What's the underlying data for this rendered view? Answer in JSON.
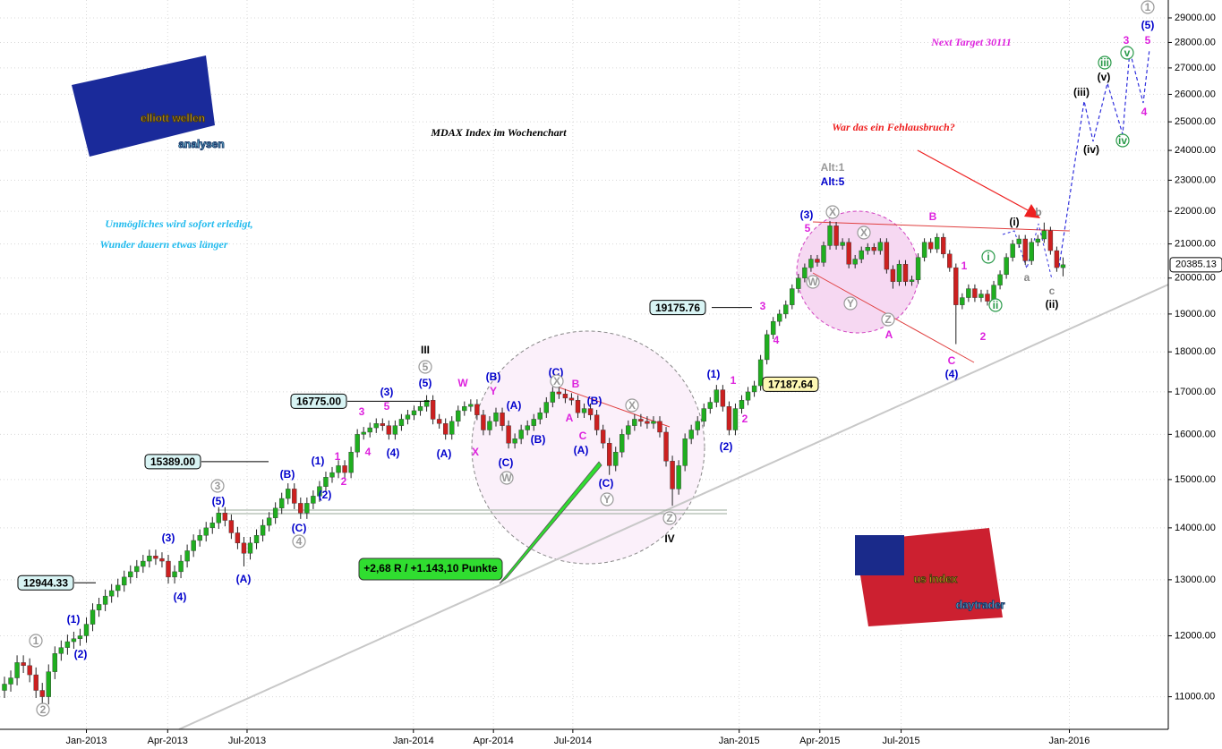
{
  "chart_data": {
    "type": "candlestick",
    "title": "MDAX Index im Wochenchart",
    "subtitle": [
      "Unmögliches wird sofort erledigt,",
      "Wunder dauern etwas länger"
    ],
    "question": "War das ein Fehlausbruch?",
    "target": "Next Target 30111",
    "logos": [
      "elliott wellen",
      "analysen",
      "us index",
      "daytrader"
    ],
    "up_color": "#1fae1f",
    "down_color": "#cc2020",
    "log_scale": true,
    "grid": true,
    "xlim": [
      -0.71,
      184.7
    ],
    "ylim": [
      10500,
      29750
    ],
    "xticks": [
      {
        "value": 13,
        "label": "Jan-2013"
      },
      {
        "value": 25.9,
        "label": "Apr-2013"
      },
      {
        "value": 38.5,
        "label": "Jul-2013"
      },
      {
        "value": 64.9,
        "label": "Jan-2014"
      },
      {
        "value": 77.6,
        "label": "Apr-2014"
      },
      {
        "value": 90.2,
        "label": "Jul-2014"
      },
      {
        "value": 116.6,
        "label": "Jan-2015"
      },
      {
        "value": 129.4,
        "label": "Apr-2015"
      },
      {
        "value": 142.3,
        "label": "Jul-2015"
      },
      {
        "value": 169,
        "label": "Jan-2016"
      }
    ],
    "yticks": [
      {
        "value": 11000,
        "label": "11000.00"
      },
      {
        "value": 12000,
        "label": "12000.00"
      },
      {
        "value": 13000,
        "label": "13000.00"
      },
      {
        "value": 14000,
        "label": "14000.00"
      },
      {
        "value": 15000,
        "label": "15000.00"
      },
      {
        "value": 16000,
        "label": "16000.00"
      },
      {
        "value": 17000,
        "label": "17000.00"
      },
      {
        "value": 18000,
        "label": "18000.00"
      },
      {
        "value": 19000,
        "label": "19000.00"
      },
      {
        "value": 20000,
        "label": "20000.00"
      },
      {
        "value": 21000,
        "label": "21000.00"
      },
      {
        "value": 22000,
        "label": "22000.00"
      },
      {
        "value": 23000,
        "label": "23000.00"
      },
      {
        "value": 24000,
        "label": "24000.00"
      },
      {
        "value": 25000,
        "label": "25000.00"
      },
      {
        "value": 26000,
        "label": "26000.00"
      },
      {
        "value": 27000,
        "label": "27000.00"
      },
      {
        "value": 28000,
        "label": "28000.00"
      },
      {
        "value": 29000,
        "label": "29000.00"
      }
    ],
    "open": [
      11100,
      11200,
      11300,
      11550,
      11500,
      11350,
      11100,
      11000,
      11400,
      11700,
      11800,
      11900,
      11950,
      12000,
      12200,
      12450,
      12550,
      12700,
      12800,
      12900,
      13050,
      13150,
      13250,
      13350,
      13450,
      13400,
      13350,
      13050,
      13150,
      13350,
      13550,
      13750,
      13850,
      14000,
      14100,
      14300,
      14150,
      13900,
      13700,
      13500,
      13700,
      13850,
      14050,
      14200,
      14400,
      14600,
      14800,
      14500,
      14300,
      14500,
      14650,
      14850,
      15050,
      15150,
      15300,
      15150,
      15600,
      16000,
      16050,
      16150,
      16250,
      16200,
      16000,
      16200,
      16350,
      16450,
      16550,
      16650,
      16800,
      16350,
      16250,
      16000,
      16300,
      16550,
      16650,
      16700,
      16450,
      16100,
      16300,
      16500,
      16200,
      15800,
      15900,
      16100,
      16200,
      16350,
      16500,
      16750,
      17000,
      16950,
      16850,
      16800,
      16500,
      16600,
      16450,
      16100,
      15800,
      15300,
      15600,
      16000,
      16200,
      16350,
      16300,
      16250,
      16300,
      16050,
      15400,
      14800,
      15300,
      15900,
      16100,
      16300,
      16600,
      16750,
      17050,
      16650,
      16100,
      16600,
      16800,
      17000,
      17150,
      17800,
      18450,
      18800,
      19000,
      19250,
      19700,
      20000,
      20300,
      20550,
      20450,
      20950,
      21550,
      20950,
      21050,
      20400,
      20550,
      20800,
      20900,
      20800,
      21050,
      20250,
      19900,
      20400,
      19900,
      19950,
      20600,
      21050,
      20850,
      21200,
      20700,
      20300,
      19250,
      19450,
      19700,
      19450,
      19550,
      19350,
      19800,
      20100,
      20600,
      21000,
      21150,
      20500,
      21050,
      21150,
      21400,
      20800,
      20300
    ],
    "high": [
      11320,
      11420,
      11670,
      11670,
      11620,
      11470,
      11220,
      11520,
      11820,
      11920,
      12020,
      12070,
      12120,
      12320,
      12570,
      12670,
      12820,
      12920,
      13020,
      13170,
      13270,
      13370,
      13470,
      13570,
      13570,
      13520,
      13470,
      13270,
      13470,
      13670,
      13870,
      13970,
      14120,
      14220,
      14420,
      14420,
      14270,
      14020,
      13820,
      13820,
      13970,
      14170,
      14320,
      14520,
      14720,
      14920,
      14920,
      14620,
      14620,
      14770,
      14970,
      15170,
      15270,
      15420,
      15420,
      15720,
      16120,
      16170,
      16270,
      16370,
      16370,
      16320,
      16320,
      16470,
      16570,
      16670,
      16770,
      16920,
      16920,
      16470,
      16370,
      16420,
      16670,
      16770,
      16820,
      16820,
      16570,
      16420,
      16620,
      16620,
      16320,
      16020,
      16220,
      16320,
      16470,
      16620,
      16870,
      17120,
      17120,
      17070,
      16970,
      16920,
      16720,
      16720,
      16570,
      16220,
      15920,
      15720,
      16120,
      16320,
      16470,
      16470,
      16420,
      16420,
      16420,
      16170,
      15520,
      15420,
      16020,
      16220,
      16420,
      16720,
      16870,
      17170,
      17170,
      16770,
      16720,
      16920,
      17120,
      17270,
      17920,
      18570,
      18920,
      19120,
      19370,
      19820,
      20120,
      20420,
      20670,
      20670,
      21070,
      21700,
      21670,
      21170,
      21170,
      20670,
      20920,
      21020,
      21020,
      21170,
      21170,
      20370,
      20520,
      20520,
      20070,
      20720,
      21170,
      21170,
      21320,
      21320,
      20820,
      20420,
      19570,
      19820,
      19820,
      19670,
      19670,
      19920,
      20220,
      20720,
      21120,
      21270,
      21270,
      21170,
      21270,
      21650,
      21520,
      20920,
      20600
    ],
    "low": [
      10980,
      11080,
      11180,
      11380,
      11230,
      10980,
      10880,
      10880,
      11280,
      11580,
      11680,
      11780,
      11830,
      11880,
      12080,
      12330,
      12430,
      12580,
      12680,
      12780,
      12930,
      13030,
      13130,
      13230,
      13280,
      13230,
      12930,
      12930,
      13030,
      13230,
      13430,
      13630,
      13730,
      13880,
      13980,
      14030,
      13780,
      13580,
      13250,
      13380,
      13580,
      13730,
      13930,
      14080,
      14280,
      14480,
      14380,
      14180,
      14180,
      14380,
      14530,
      14730,
      14930,
      15030,
      15030,
      15030,
      15480,
      15880,
      15930,
      16030,
      16080,
      15880,
      15880,
      16080,
      16230,
      16330,
      16430,
      16530,
      16230,
      16130,
      15880,
      15880,
      16180,
      16430,
      16530,
      16330,
      15980,
      15980,
      16180,
      16080,
      15680,
      15680,
      15780,
      15980,
      16080,
      16230,
      16380,
      16630,
      16830,
      16730,
      16680,
      16380,
      16380,
      16330,
      15980,
      15680,
      15100,
      15180,
      15480,
      15880,
      16080,
      16180,
      16130,
      16130,
      15930,
      15280,
      14450,
      14680,
      15180,
      15780,
      15980,
      16180,
      16480,
      16630,
      16530,
      15980,
      15980,
      16480,
      16680,
      16880,
      17030,
      17680,
      18330,
      18680,
      18880,
      19130,
      19580,
      19880,
      20180,
      20330,
      20330,
      20830,
      20830,
      20830,
      20280,
      20280,
      20430,
      20680,
      20680,
      20680,
      20130,
      19700,
      19780,
      19780,
      19780,
      19830,
      20480,
      20730,
      20730,
      20580,
      20180,
      18200,
      19130,
      19330,
      19330,
      19330,
      19230,
      19230,
      19680,
      19980,
      20480,
      20880,
      20380,
      20380,
      20930,
      21030,
      20680,
      20180,
      20050
    ],
    "close": [
      11200,
      11300,
      11550,
      11500,
      11350,
      11100,
      11000,
      11400,
      11700,
      11800,
      11900,
      11950,
      12000,
      12200,
      12450,
      12550,
      12700,
      12800,
      12900,
      13050,
      13150,
      13250,
      13350,
      13450,
      13400,
      13350,
      13050,
      13150,
      13350,
      13550,
      13750,
      13850,
      14000,
      14100,
      14300,
      14150,
      13900,
      13700,
      13500,
      13700,
      13850,
      14050,
      14200,
      14400,
      14600,
      14800,
      14500,
      14300,
      14500,
      14650,
      14850,
      15050,
      15150,
      15300,
      15150,
      15600,
      16000,
      16050,
      16150,
      16250,
      16200,
      16000,
      16200,
      16350,
      16450,
      16550,
      16650,
      16800,
      16350,
      16250,
      16000,
      16300,
      16550,
      16650,
      16700,
      16450,
      16100,
      16300,
      16500,
      16200,
      15800,
      15900,
      16100,
      16200,
      16350,
      16500,
      16750,
      17000,
      16950,
      16850,
      16800,
      16500,
      16600,
      16450,
      16100,
      15800,
      15300,
      15600,
      16000,
      16200,
      16350,
      16300,
      16250,
      16300,
      16050,
      15400,
      14800,
      15300,
      15900,
      16100,
      16300,
      16600,
      16750,
      17050,
      16650,
      16100,
      16600,
      16800,
      17000,
      17150,
      17800,
      18450,
      18800,
      19000,
      19250,
      19700,
      20000,
      20300,
      20550,
      20450,
      20950,
      21550,
      20950,
      21050,
      20400,
      20550,
      20800,
      20900,
      20800,
      21050,
      20250,
      19900,
      20400,
      19900,
      19950,
      20600,
      21050,
      20850,
      21200,
      20700,
      20300,
      19250,
      19450,
      19700,
      19450,
      19550,
      19350,
      19800,
      20100,
      20600,
      21000,
      21150,
      20500,
      21050,
      21150,
      21400,
      20800,
      20300,
      20385.13
    ],
    "levels": [
      {
        "value": 12944.33,
        "label": "12944.33",
        "color": "#d8f4f4"
      },
      {
        "value": 15389,
        "label": "15389.00",
        "color": "#d8f4f4"
      },
      {
        "value": 16775,
        "label": "16775.00",
        "color": "#d8f4f4"
      },
      {
        "value": 19175.76,
        "label": "19175.76",
        "color": "#d8f4f4"
      },
      {
        "value": 17187.64,
        "label": "17187.64",
        "color": "#fdf7b4"
      }
    ],
    "gain_label": "+2,68 R / +1.143,10 Punkte",
    "annotations": [
      {
        "text": "(1)",
        "color": "#0000cc",
        "style": "plain"
      },
      {
        "text": "(2)",
        "color": "#0000cc",
        "style": "plain"
      },
      {
        "text": "(3)",
        "color": "#0000cc",
        "style": "plain"
      },
      {
        "text": "(4)",
        "color": "#0000cc",
        "style": "plain"
      },
      {
        "text": "(5)",
        "color": "#0000cc",
        "style": "plain"
      },
      {
        "text": "(A)",
        "color": "#0000cc",
        "style": "plain"
      },
      {
        "text": "(B)",
        "color": "#0000cc",
        "style": "plain"
      },
      {
        "text": "(C)",
        "color": "#0000cc",
        "style": "plain"
      },
      {
        "text": "(1)",
        "color": "#0000cc",
        "style": "plain"
      },
      {
        "text": "(2)",
        "color": "#0000cc",
        "style": "plain"
      },
      {
        "text": "(3)",
        "color": "#0000cc",
        "style": "plain"
      },
      {
        "text": "(4)",
        "color": "#0000cc",
        "style": "plain"
      },
      {
        "text": "(5)",
        "color": "#0000cc",
        "style": "plain"
      },
      {
        "text": "(A)",
        "color": "#0000cc",
        "style": "plain"
      },
      {
        "text": "(B)",
        "color": "#0000cc",
        "style": "plain"
      },
      {
        "text": "(A)",
        "color": "#0000cc",
        "style": "plain"
      },
      {
        "text": "(B)",
        "color": "#0000cc",
        "style": "plain"
      },
      {
        "text": "(C)",
        "color": "#0000cc",
        "style": "plain"
      },
      {
        "text": "(C)",
        "color": "#0000cc",
        "style": "plain"
      },
      {
        "text": "(B)",
        "color": "#0000cc",
        "style": "plain"
      },
      {
        "text": "(A)",
        "color": "#0000cc",
        "style": "plain"
      },
      {
        "text": "(C)",
        "color": "#0000cc",
        "style": "plain"
      },
      {
        "text": "(1)",
        "color": "#0000cc",
        "style": "plain"
      },
      {
        "text": "(2)",
        "color": "#0000cc",
        "style": "plain"
      },
      {
        "text": "(3)",
        "color": "#0000cc",
        "style": "plain"
      },
      {
        "text": "(4)",
        "color": "#0000cc",
        "style": "plain"
      },
      {
        "text": "(5)",
        "color": "#0000cc",
        "style": "plain"
      },
      {
        "text": "1",
        "color": "#dd22dd",
        "style": "plain"
      },
      {
        "text": "2",
        "color": "#dd22dd",
        "style": "plain"
      },
      {
        "text": "3",
        "color": "#dd22dd",
        "style": "plain"
      },
      {
        "text": "4",
        "color": "#dd22dd",
        "style": "plain"
      },
      {
        "text": "5",
        "color": "#dd22dd",
        "style": "plain"
      },
      {
        "text": "W",
        "color": "#dd22dd",
        "style": "plain"
      },
      {
        "text": "Y",
        "color": "#dd22dd",
        "style": "plain"
      },
      {
        "text": "X",
        "color": "#dd22dd",
        "style": "plain"
      },
      {
        "text": "B",
        "color": "#dd22dd",
        "style": "plain"
      },
      {
        "text": "A",
        "color": "#dd22dd",
        "style": "plain"
      },
      {
        "text": "C",
        "color": "#dd22dd",
        "style": "plain"
      },
      {
        "text": "1",
        "color": "#dd22dd",
        "style": "plain"
      },
      {
        "text": "2",
        "color": "#dd22dd",
        "style": "plain"
      },
      {
        "text": "3",
        "color": "#dd22dd",
        "style": "plain"
      },
      {
        "text": "4",
        "color": "#dd22dd",
        "style": "plain"
      },
      {
        "text": "5",
        "color": "#dd22dd",
        "style": "plain"
      },
      {
        "text": "B",
        "color": "#dd22dd",
        "style": "plain"
      },
      {
        "text": "A",
        "color": "#dd22dd",
        "style": "plain"
      },
      {
        "text": "C",
        "color": "#dd22dd",
        "style": "plain"
      },
      {
        "text": "1",
        "color": "#dd22dd",
        "style": "plain"
      },
      {
        "text": "2",
        "color": "#dd22dd",
        "style": "plain"
      },
      {
        "text": "3",
        "color": "#dd22dd",
        "style": "plain"
      },
      {
        "text": "4",
        "color": "#dd22dd",
        "style": "plain"
      },
      {
        "text": "5",
        "color": "#dd22dd",
        "style": "plain"
      },
      {
        "text": "1",
        "color": "#999999",
        "style": "circled"
      },
      {
        "text": "2",
        "color": "#999999",
        "style": "circled"
      },
      {
        "text": "3",
        "color": "#999999",
        "style": "circled"
      },
      {
        "text": "4",
        "color": "#999999",
        "style": "circled"
      },
      {
        "text": "5",
        "color": "#999999",
        "style": "circled"
      },
      {
        "text": "X",
        "color": "#999999",
        "style": "circled"
      },
      {
        "text": "W",
        "color": "#999999",
        "style": "circled"
      },
      {
        "text": "X",
        "color": "#999999",
        "style": "circled"
      },
      {
        "text": "Y",
        "color": "#999999",
        "style": "circled"
      },
      {
        "text": "Z",
        "color": "#999999",
        "style": "circled"
      },
      {
        "text": "X",
        "color": "#999999",
        "style": "circled"
      },
      {
        "text": "W",
        "color": "#999999",
        "style": "circled"
      },
      {
        "text": "X",
        "color": "#999999",
        "style": "circled"
      },
      {
        "text": "Y",
        "color": "#999999",
        "style": "circled"
      },
      {
        "text": "Z",
        "color": "#999999",
        "style": "circled"
      },
      {
        "text": "1",
        "color": "#999999",
        "style": "circled"
      },
      {
        "text": "i",
        "color": "#2a9a4a",
        "style": "circled"
      },
      {
        "text": "ii",
        "color": "#2a9a4a",
        "style": "circled"
      },
      {
        "text": "iii",
        "color": "#2a9a4a",
        "style": "circled"
      },
      {
        "text": "iv",
        "color": "#2a9a4a",
        "style": "circled"
      },
      {
        "text": "v",
        "color": "#2a9a4a",
        "style": "circled"
      },
      {
        "text": "III",
        "color": "#000000",
        "style": "large"
      },
      {
        "text": "IV",
        "color": "#000000",
        "style": "large"
      },
      {
        "text": "(i)",
        "color": "#000000",
        "style": "plain"
      },
      {
        "text": "(ii)",
        "color": "#000000",
        "style": "plain"
      },
      {
        "text": "(iii)",
        "color": "#000000",
        "style": "plain"
      },
      {
        "text": "(iv)",
        "color": "#000000",
        "style": "plain"
      },
      {
        "text": "(v)",
        "color": "#000000",
        "style": "plain"
      },
      {
        "text": "a",
        "color": "#888888",
        "style": "plain"
      },
      {
        "text": "b",
        "color": "#888888",
        "style": "plain"
      },
      {
        "text": "c",
        "color": "#888888",
        "style": "plain"
      },
      {
        "text": "Alt:1",
        "color": "#999999",
        "style": "plain"
      },
      {
        "text": "Alt:5",
        "color": "#0000cc",
        "style": "plain"
      }
    ]
  }
}
